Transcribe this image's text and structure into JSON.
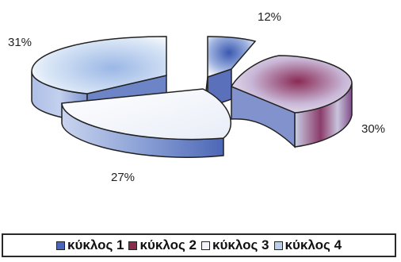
{
  "chart_data": {
    "type": "pie",
    "categories": [
      "κύκλος 1",
      "κύκλος 2",
      "κύκλος 3",
      "κύκλος 4"
    ],
    "values": [
      12,
      30,
      27,
      31
    ],
    "data_labels": [
      "12%",
      "30%",
      "27%",
      "31%"
    ],
    "title": "",
    "legend_position": "bottom",
    "exploded": true,
    "three_d": true,
    "colors": [
      "#4a66b8",
      "#8c2a4e",
      "#f2f4fa",
      "#b9d0ec"
    ]
  }
}
